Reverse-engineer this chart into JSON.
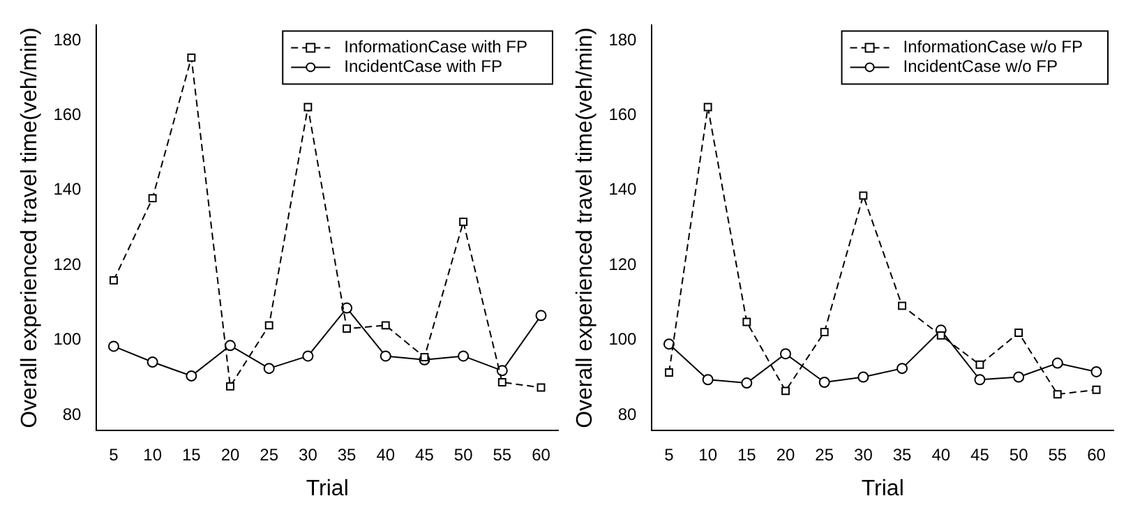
{
  "chart_data": [
    {
      "type": "line",
      "xlabel": "Trial",
      "ylabel": "Overall experienced travel time(veh/min)",
      "x": [
        5,
        10,
        15,
        20,
        25,
        30,
        35,
        40,
        45,
        50,
        55,
        60
      ],
      "xlim": [
        2.8,
        62.2
      ],
      "xticks": [
        5,
        10,
        15,
        20,
        25,
        30,
        35,
        40,
        45,
        50,
        55,
        60
      ],
      "ylim": [
        76,
        184
      ],
      "yticks": [
        80,
        100,
        120,
        140,
        160,
        180
      ],
      "grid": false,
      "legend": "top right",
      "series": [
        {
          "name": "InformationCase with FP",
          "color": "#000000",
          "line_style": "dashed",
          "marker": "square",
          "values": [
            116,
            137.9,
            175.4,
            87.7,
            104,
            162.2,
            103.1,
            104,
            95.5,
            131.6,
            88.8,
            87.4
          ]
        },
        {
          "name": "IncidentCase with FP",
          "color": "#000000",
          "line_style": "solid",
          "marker": "circle",
          "values": [
            98.4,
            94.2,
            90.5,
            98.6,
            92.5,
            95.8,
            108.6,
            95.8,
            94.8,
            95.8,
            91.9,
            106.6
          ]
        }
      ]
    },
    {
      "type": "line",
      "xlabel": "Trial",
      "ylabel": "Overall experienced travel time(veh/min)",
      "x": [
        5,
        10,
        15,
        20,
        25,
        30,
        35,
        40,
        45,
        50,
        55,
        60
      ],
      "xlim": [
        2.8,
        62.2
      ],
      "xticks": [
        5,
        10,
        15,
        20,
        25,
        30,
        35,
        40,
        45,
        50,
        55,
        60
      ],
      "ylim": [
        76,
        184
      ],
      "yticks": [
        80,
        100,
        120,
        140,
        160,
        180
      ],
      "grid": false,
      "legend": "top right",
      "series": [
        {
          "name": "InformationCase w/o FP",
          "color": "#000000",
          "line_style": "dashed",
          "marker": "square",
          "values": [
            91.4,
            162.2,
            104.9,
            86.5,
            102.2,
            138.6,
            109.2,
            101.3,
            93.5,
            102,
            85.6,
            86.8
          ]
        },
        {
          "name": "IncidentCase w/o FP",
          "color": "#000000",
          "line_style": "solid",
          "marker": "circle",
          "values": [
            99,
            89.5,
            88.6,
            96.4,
            88.8,
            90.2,
            92.5,
            102.7,
            89.5,
            90.2,
            93.9,
            91.6
          ]
        }
      ]
    }
  ]
}
